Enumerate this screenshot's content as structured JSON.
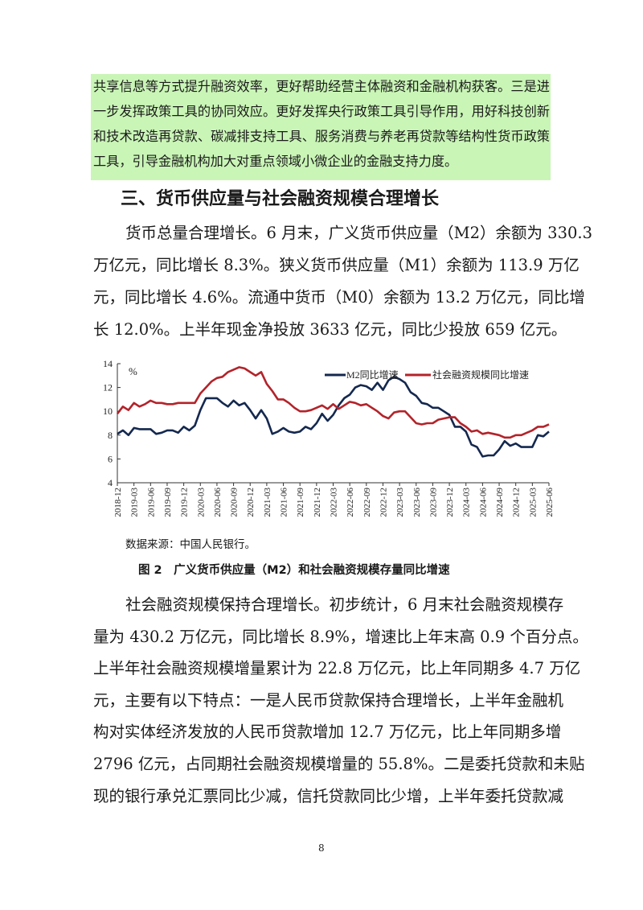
{
  "highlighted_paragraph": {
    "background": "#c9f5b6",
    "lines": [
      "共享信息等方式提升融资效率，更好帮助经营主体融资和金融机构获客。三是进",
      "一步发挥政策工具的协同效应。更好发挥央行政策工具引导作用，用好科技创新",
      "和技术改造再贷款、碳减排支持工具、服务消费与养老再贷款等结构性货币政策",
      "工具，引导金融机构加大对重点领域小微企业的金融支持力度。"
    ]
  },
  "section_heading": "三、货币供应量与社会融资规模合理增长",
  "paragraph1": {
    "lines": [
      "货币总量合理增长。6 月末，广义货币供应量（M2）余额为 330.3",
      "万亿元，同比增长 8.3%。狭义货币供应量（M1）余额为 113.9 万亿",
      "元，同比增长 4.6%。流通中货币（M0）余额为 13.2 万亿元，同比增",
      "长 12.0%。上半年现金净投放 3633 亿元，同比少投放 659 亿元。"
    ]
  },
  "chart_data": {
    "type": "line",
    "ylabel": "%",
    "ylim": [
      4,
      14
    ],
    "yticks": [
      4,
      6,
      8,
      10,
      12,
      14
    ],
    "grid": false,
    "legend_position": "top-right",
    "x": [
      "2018-12",
      "2019-01",
      "2019-02",
      "2019-03",
      "2019-04",
      "2019-05",
      "2019-06",
      "2019-07",
      "2019-08",
      "2019-09",
      "2019-10",
      "2019-11",
      "2019-12",
      "2020-01",
      "2020-02",
      "2020-03",
      "2020-04",
      "2020-05",
      "2020-06",
      "2020-07",
      "2020-08",
      "2020-09",
      "2020-10",
      "2020-11",
      "2020-12",
      "2021-01",
      "2021-02",
      "2021-03",
      "2021-04",
      "2021-05",
      "2021-06",
      "2021-07",
      "2021-08",
      "2021-09",
      "2021-10",
      "2021-11",
      "2021-12",
      "2022-01",
      "2022-02",
      "2022-03",
      "2022-04",
      "2022-05",
      "2022-06",
      "2022-07",
      "2022-08",
      "2022-09",
      "2022-10",
      "2022-11",
      "2022-12",
      "2023-01",
      "2023-02",
      "2023-03",
      "2023-04",
      "2023-05",
      "2023-06",
      "2023-07",
      "2023-08",
      "2023-09",
      "2023-10",
      "2023-11",
      "2023-12",
      "2024-01",
      "2024-02",
      "2024-03",
      "2024-04",
      "2024-05",
      "2024-06",
      "2024-07",
      "2024-08",
      "2024-09",
      "2024-10",
      "2024-11",
      "2024-12",
      "2025-01",
      "2025-02",
      "2025-03",
      "2025-04",
      "2025-05",
      "2025-06"
    ],
    "xtick_labels": [
      "2018-12",
      "2019-03",
      "2019-06",
      "2019-09",
      "2019-12",
      "2020-03",
      "2020-06",
      "2020-09",
      "2020-12",
      "2021-03",
      "2021-06",
      "2021-09",
      "2021-12",
      "2022-03",
      "2022-06",
      "2022-09",
      "2022-12",
      "2023-03",
      "2023-06",
      "2023-09",
      "2023-12",
      "2024-03",
      "2024-06",
      "2024-09",
      "2024-12",
      "2025-03",
      "2025-06"
    ],
    "series": [
      {
        "name": "M2同比增速",
        "color": "#14284f",
        "values": [
          8.1,
          8.4,
          8.0,
          8.6,
          8.5,
          8.5,
          8.5,
          8.1,
          8.2,
          8.4,
          8.4,
          8.2,
          8.7,
          8.4,
          8.8,
          10.1,
          11.1,
          11.1,
          11.1,
          10.7,
          10.4,
          10.9,
          10.5,
          10.7,
          10.1,
          9.4,
          10.1,
          9.4,
          8.1,
          8.3,
          8.6,
          8.3,
          8.2,
          8.3,
          8.7,
          8.5,
          9.0,
          9.8,
          9.2,
          9.7,
          10.5,
          11.1,
          11.4,
          12.0,
          12.2,
          12.1,
          11.8,
          12.4,
          11.8,
          12.6,
          12.9,
          12.7,
          12.4,
          11.6,
          11.3,
          10.7,
          10.6,
          10.3,
          10.3,
          10.0,
          9.7,
          8.7,
          8.7,
          8.3,
          7.2,
          7.0,
          6.2,
          6.3,
          6.3,
          6.8,
          7.5,
          7.1,
          7.3,
          7.0,
          7.0,
          7.0,
          8.0,
          7.9,
          8.3
        ]
      },
      {
        "name": "社会融资规模同比增速",
        "color": "#b3232a",
        "values": [
          9.8,
          10.4,
          10.1,
          10.7,
          10.4,
          10.6,
          10.9,
          10.7,
          10.7,
          10.6,
          10.6,
          10.7,
          10.7,
          10.7,
          10.7,
          11.5,
          12.0,
          12.5,
          12.8,
          12.9,
          13.3,
          13.5,
          13.7,
          13.6,
          13.3,
          13.0,
          13.3,
          12.3,
          11.7,
          11.0,
          11.0,
          10.7,
          10.3,
          10.0,
          10.0,
          10.1,
          10.3,
          10.5,
          10.2,
          10.6,
          10.2,
          10.5,
          10.8,
          10.7,
          10.5,
          10.6,
          10.3,
          10.0,
          9.6,
          9.4,
          9.9,
          10.0,
          10.0,
          9.5,
          9.0,
          8.9,
          9.0,
          9.0,
          9.3,
          9.4,
          9.5,
          9.5,
          9.0,
          8.7,
          8.3,
          8.4,
          8.1,
          8.2,
          8.1,
          8.0,
          7.8,
          7.8,
          8.0,
          8.0,
          8.2,
          8.4,
          8.7,
          8.7,
          8.9
        ]
      }
    ]
  },
  "chart_source": "数据来源：中国人民银行。",
  "figure_caption": "图 2　广义货币供应量（M2）和社会融资规模存量同比增速",
  "paragraph2": {
    "lines": [
      "社会融资规模保持合理增长。初步统计，6 月末社会融资规模存",
      "量为 430.2 万亿元，同比增长 8.9%，增速比上年末高 0.9 个百分点。",
      "上半年社会融资规模增量累计为 22.8 万亿元，比上年同期多 4.7 万亿",
      "元，主要有以下特点：一是人民币贷款保持合理增长，上半年金融机",
      "构对实体经济发放的人民币贷款增加 12.7 万亿元，比上年同期多增",
      "2796 亿元，占同期社会融资规模增量的 55.8%。二是委托贷款和未贴",
      "现的银行承兑汇票同比少减，信托贷款同比少增，上半年委托贷款减"
    ]
  },
  "page_number": "8"
}
